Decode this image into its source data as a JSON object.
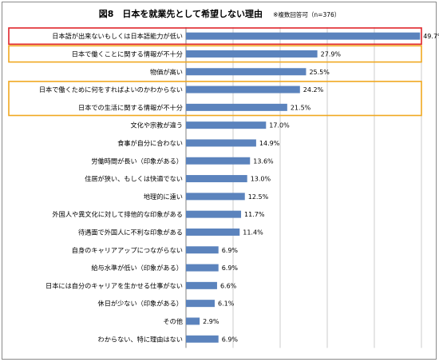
{
  "title": "図8　日本を就業先として希望しない理由",
  "note": "※複数回答可（n=376）",
  "colors": {
    "bar": "#5b83bd",
    "red_highlight": "#e0252a",
    "orange_highlight": "#f0a820",
    "grid": "#bfbfbf",
    "axis": "#808080"
  },
  "chart_data": {
    "type": "bar",
    "orientation": "horizontal",
    "title": "図8　日本を就業先として希望しない理由",
    "subtitle": "※複数回答可（n=376）",
    "xlim": [
      0,
      50
    ],
    "grid": true,
    "categories": [
      "日本語が出来ないもしくは日本語能力が低い",
      "日本で働くことに関する情報が不十分",
      "物価が高い",
      "日本で働くために何をすればよいのかわからない",
      "日本での生活に関する情報が不十分",
      "文化や宗教が違う",
      "食事が自分に合わない",
      "労働時間が長い（印象がある）",
      "住居が狭い、もしくは快適でない",
      "地理的に遠い",
      "外国人や異文化に対して排他的な印象がある",
      "待遇面で外国人に不利な印象がある",
      "自身のキャリアアップにつながらない",
      "給与水準が低い（印象がある）",
      "日本には自分のキャリアを生かせる仕事がない",
      "休日が少ない（印象がある）",
      "その他",
      "わからない、特に理由はない"
    ],
    "values": [
      49.7,
      27.9,
      25.5,
      24.2,
      21.5,
      17.0,
      14.9,
      13.6,
      13.0,
      12.5,
      11.7,
      11.4,
      6.9,
      6.9,
      6.6,
      6.1,
      2.9,
      6.9
    ],
    "value_labels": [
      "49.7%",
      "27.9%",
      "25.5%",
      "24.2%",
      "21.5%",
      "17.0%",
      "14.9%",
      "13.6%",
      "13.0%",
      "12.5%",
      "11.7%",
      "11.4%",
      "6.9%",
      "6.9%",
      "6.6%",
      "6.1%",
      "2.9%",
      "6.9%"
    ],
    "highlights": [
      {
        "color": "red",
        "categories": [
          "日本語が出来ないもしくは日本語能力が低い"
        ]
      },
      {
        "color": "orange",
        "categories": [
          "日本で働くことに関する情報が不十分"
        ]
      },
      {
        "color": "orange",
        "categories": [
          "日本で働くために何をすればよいのかわからない",
          "日本での生活に関する情報が不十分"
        ]
      }
    ]
  }
}
